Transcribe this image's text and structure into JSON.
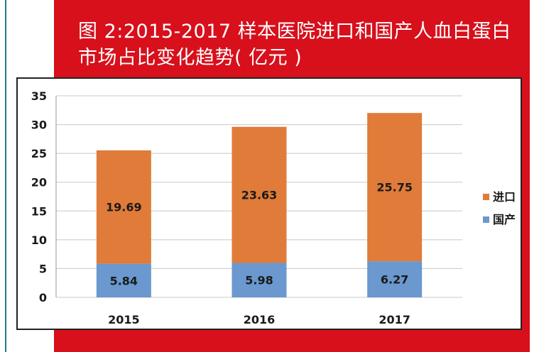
{
  "title": {
    "line1": "图 2:2015-2017 样本医院进口和国产人血白蛋白",
    "line2": "市场占比变化趋势( 亿元 )"
  },
  "colors": {
    "red_panel": "#d7101c",
    "import": "#e07b39",
    "domestic": "#6a98cf"
  },
  "chart_data": {
    "type": "bar",
    "stacked": true,
    "title": "图 2:2015-2017 样本医院进口和国产人血白蛋白市场占比变化趋势( 亿元 )",
    "categories": [
      "2015",
      "2016",
      "2017"
    ],
    "series": [
      {
        "name": "国产",
        "values": [
          5.84,
          5.98,
          6.27
        ]
      },
      {
        "name": "进口",
        "values": [
          19.69,
          23.63,
          25.75
        ]
      }
    ],
    "legend_order": [
      "进口",
      "国产"
    ],
    "ylim": [
      0,
      35
    ],
    "yticks": [
      0,
      5,
      10,
      15,
      20,
      25,
      30,
      35
    ],
    "grid": true,
    "legend": "right",
    "xlabel": "",
    "ylabel": ""
  }
}
